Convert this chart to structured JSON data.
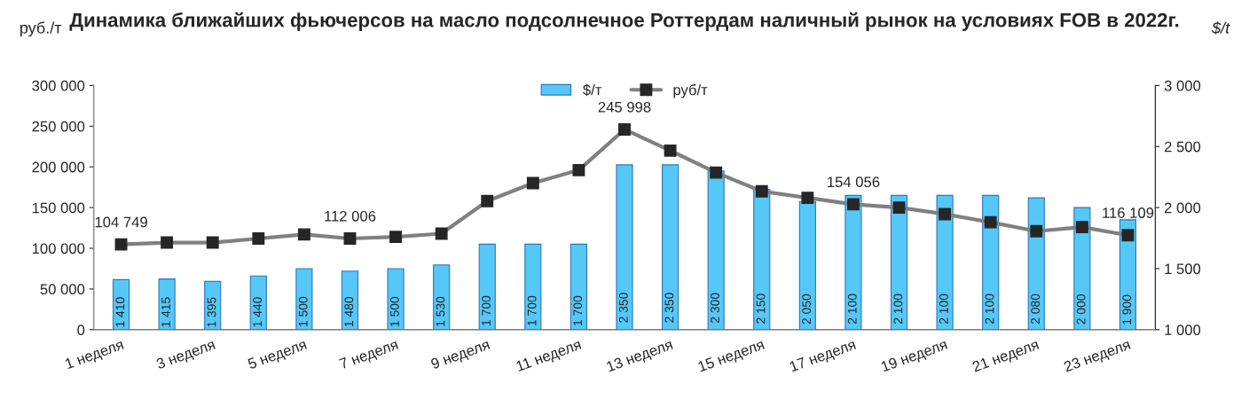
{
  "chart_data": {
    "type": "bar",
    "title": "Динамика ближайших фьючерсов на масло подсолнечное Роттердам наличный рынок на условиях FOB в 2022г.",
    "ylabel": "руб./т",
    "y2label": "$/t",
    "categories": [
      "1 неделя",
      null,
      "3 неделя",
      null,
      "5 неделя",
      null,
      "7 неделя",
      null,
      "9 неделя",
      null,
      "11 неделя",
      null,
      "13 неделя",
      null,
      "15 неделя",
      null,
      "17 неделя",
      null,
      "19 неделя",
      null,
      "21 неделя",
      null,
      "23 неделя"
    ],
    "series": [
      {
        "name": "$/т",
        "axis": "y2",
        "color": "#55c8f8",
        "values": [
          1410,
          1415,
          1395,
          1440,
          1500,
          1480,
          1500,
          1530,
          1700,
          1700,
          1700,
          2350,
          2350,
          2300,
          2150,
          2050,
          2100,
          2100,
          2100,
          2100,
          2080,
          2000,
          1900
        ],
        "value_labels": [
          "1 410",
          "1 415",
          "1 395",
          "1 440",
          "1 500",
          "1 480",
          "1 500",
          "1 530",
          "1 700",
          "1 700",
          "1 700",
          "2 350",
          "2 350",
          "2 300",
          "2 150",
          "2 050",
          "2 100",
          "2 100",
          "2 100",
          "2 100",
          "2 080",
          "2 000",
          "1 900"
        ]
      },
      {
        "name": "руб/т",
        "type": "line",
        "color": "#808080",
        "marker": "square",
        "values": [
          104749,
          107000,
          107000,
          112000,
          117000,
          112006,
          114000,
          118000,
          158000,
          180000,
          196000,
          245998,
          220000,
          193000,
          170000,
          162000,
          154056,
          150000,
          142000,
          132000,
          121000,
          126000,
          116109
        ],
        "value_labels": [
          "104 749",
          null,
          null,
          null,
          null,
          "112 006",
          null,
          null,
          null,
          null,
          null,
          "245 998",
          null,
          null,
          null,
          null,
          "154 056",
          null,
          null,
          null,
          null,
          null,
          "116 109"
        ]
      }
    ],
    "ylim": [
      0,
      300000
    ],
    "yticks": [
      {
        "value": 0,
        "label": "0"
      },
      {
        "value": 50000,
        "label": "50 000"
      },
      {
        "value": 100000,
        "label": "100 000"
      },
      {
        "value": 150000,
        "label": "150 000"
      },
      {
        "value": 200000,
        "label": "200 000"
      },
      {
        "value": 250000,
        "label": "250 000"
      },
      {
        "value": 300000,
        "label": "300 000"
      }
    ],
    "y2lim": [
      1000,
      3000
    ],
    "y2ticks": [
      {
        "value": 1000,
        "label": "1 000"
      },
      {
        "value": 1500,
        "label": "1 500"
      },
      {
        "value": 2000,
        "label": "2 000"
      },
      {
        "value": 2500,
        "label": "2 500"
      },
      {
        "value": 3000,
        "label": "3 000"
      }
    ],
    "legend": "top",
    "grid": false
  }
}
